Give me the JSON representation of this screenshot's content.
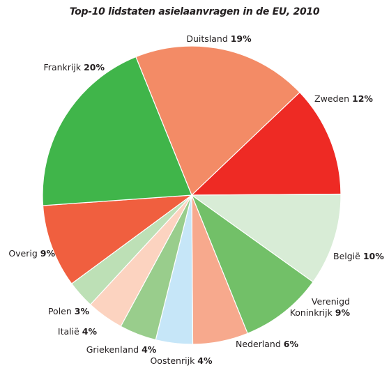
{
  "chart_data": {
    "type": "pie",
    "title": "Top-10 lidstaten asielaanvragen in de EU, 2010",
    "slices": [
      {
        "label": "Duitsland",
        "value": 19,
        "value_label": "19%",
        "color": "#f38b66"
      },
      {
        "label": "Zweden",
        "value": 12,
        "value_label": "12%",
        "color": "#ee2a24"
      },
      {
        "label": "België",
        "value": 10,
        "value_label": "10%",
        "color": "#d8ecd6"
      },
      {
        "label": "Verenigd Koninkrijk",
        "label_lines": [
          "Verenigd",
          "Koninkrijk"
        ],
        "value": 9,
        "value_label": "9%",
        "color": "#72c068"
      },
      {
        "label": "Nederland",
        "value": 6,
        "value_label": "6%",
        "color": "#f7a98d"
      },
      {
        "label": "Oostenrijk",
        "value": 4,
        "value_label": "4%",
        "color": "#c6e6f8"
      },
      {
        "label": "Griekenland",
        "value": 4,
        "value_label": "4%",
        "color": "#99cd8c"
      },
      {
        "label": "Italië",
        "value": 4,
        "value_label": "4%",
        "color": "#fcd3c0"
      },
      {
        "label": "Polen",
        "value": 3,
        "value_label": "3%",
        "color": "#bde0b6"
      },
      {
        "label": "Overig",
        "value": 9,
        "value_label": "9%",
        "color": "#f05f3f"
      },
      {
        "label": "Frankrijk",
        "value": 20,
        "value_label": "20%",
        "color": "#40b54a"
      }
    ]
  }
}
